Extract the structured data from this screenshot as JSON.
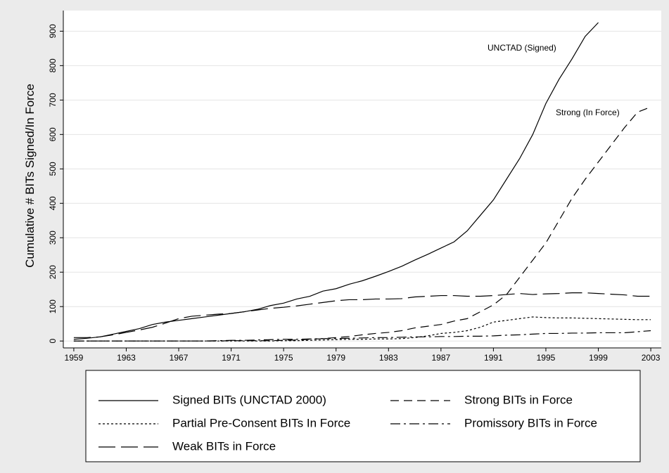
{
  "chart_data": {
    "type": "line",
    "y_label": "Cumulative # BITs Signed/In Force",
    "annotations": [
      "UNCTAD (Signed)",
      "Strong (In Force)"
    ],
    "x": [
      1959,
      1960,
      1961,
      1962,
      1963,
      1964,
      1965,
      1966,
      1967,
      1968,
      1969,
      1970,
      1971,
      1972,
      1973,
      1974,
      1975,
      1976,
      1977,
      1978,
      1979,
      1980,
      1981,
      1982,
      1983,
      1984,
      1985,
      1986,
      1987,
      1988,
      1989,
      1990,
      1991,
      1992,
      1993,
      1994,
      1995,
      1996,
      1997,
      1998,
      1999,
      2000,
      2001,
      2002,
      2003
    ],
    "xlim": [
      1958.2,
      2003.8
    ],
    "xticks": [
      1959,
      1963,
      1967,
      1971,
      1975,
      1979,
      1983,
      1987,
      1991,
      1995,
      1999,
      2003
    ],
    "ylim": [
      -20,
      960
    ],
    "yticks": [
      0,
      100,
      200,
      300,
      400,
      500,
      600,
      700,
      800,
      900
    ],
    "grid": true,
    "series": [
      {
        "name": "Signed BITs (UNCTAD 2000)",
        "color": "#000000",
        "dash": "solid",
        "values": [
          5,
          8,
          12,
          20,
          28,
          36,
          48,
          55,
          60,
          65,
          70,
          75,
          80,
          85,
          92,
          103,
          110,
          122,
          130,
          145,
          152,
          165,
          175,
          188,
          202,
          217,
          235,
          252,
          270,
          288,
          320,
          365,
          410,
          470,
          530,
          600,
          690,
          760,
          820,
          885,
          925,
          null,
          null,
          null,
          null
        ]
      },
      {
        "name": "Strong BITs in Force",
        "color": "#000000",
        "dash": "dash",
        "values": [
          0,
          0,
          0,
          0,
          0,
          0,
          0,
          0,
          0,
          0,
          0,
          0,
          1,
          1,
          1,
          1,
          2,
          3,
          5,
          7,
          10,
          13,
          18,
          22,
          25,
          30,
          38,
          43,
          48,
          58,
          65,
          85,
          105,
          135,
          185,
          235,
          285,
          350,
          415,
          470,
          520,
          570,
          620,
          665,
          680
        ]
      },
      {
        "name": "Partial Pre-Consent BITs In Force",
        "color": "#000000",
        "dash": "dot",
        "values": [
          0,
          0,
          0,
          0,
          0,
          0,
          0,
          0,
          0,
          0,
          0,
          0,
          0,
          0,
          0,
          0,
          1,
          1,
          2,
          3,
          4,
          5,
          5,
          6,
          6,
          7,
          10,
          15,
          22,
          25,
          30,
          40,
          55,
          60,
          65,
          70,
          68,
          67,
          67,
          66,
          65,
          64,
          63,
          62,
          62
        ]
      },
      {
        "name": "Promissory BITs in Force",
        "color": "#000000",
        "dash": "dashdot",
        "values": [
          0,
          0,
          0,
          0,
          0,
          0,
          0,
          0,
          0,
          0,
          0,
          1,
          2,
          2,
          3,
          4,
          5,
          5,
          6,
          7,
          7,
          8,
          9,
          10,
          10,
          11,
          12,
          12,
          13,
          13,
          14,
          14,
          15,
          17,
          18,
          20,
          22,
          22,
          23,
          23,
          24,
          24,
          24,
          27,
          30
        ]
      },
      {
        "name": "Weak BITs in Force",
        "color": "#000000",
        "dash": "longdash",
        "values": [
          10,
          10,
          12,
          18,
          25,
          32,
          40,
          52,
          65,
          72,
          75,
          78,
          80,
          85,
          90,
          95,
          98,
          102,
          107,
          112,
          117,
          120,
          120,
          122,
          122,
          123,
          128,
          130,
          132,
          132,
          130,
          130,
          132,
          135,
          138,
          135,
          137,
          138,
          140,
          140,
          138,
          136,
          134,
          130,
          130
        ]
      }
    ]
  }
}
